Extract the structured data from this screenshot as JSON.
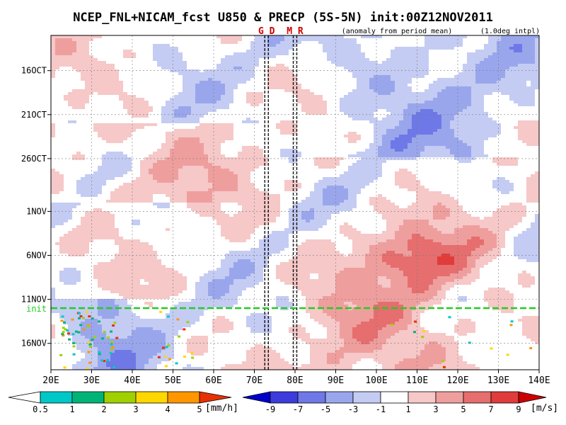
{
  "chart_data": {
    "type": "heatmap",
    "title": "NCEP_FNL+NICAM_fcst U850 & PRECP (5S-5N) init:00Z12NOV2011",
    "subtitle_left": "(anomaly from period mean)",
    "subtitle_right": "(1.0deg intpl)",
    "markers": [
      {
        "label": "G D",
        "lon": 73.0,
        "color": "#d00000"
      },
      {
        "label": "M R",
        "lon": 80.0,
        "color": "#d00000"
      }
    ],
    "init_label": "init",
    "init_color": "#22cc22",
    "x_ticks": [
      "20E",
      "30E",
      "40E",
      "50E",
      "60E",
      "70E",
      "80E",
      "90E",
      "100E",
      "110E",
      "120E",
      "130E",
      "140E"
    ],
    "x_values": [
      20,
      30,
      40,
      50,
      60,
      70,
      80,
      90,
      100,
      110,
      120,
      130,
      140
    ],
    "xlim": [
      20,
      140
    ],
    "y_ticks": [
      "16OCT",
      "21OCT",
      "26OCT",
      "1NOV",
      "6NOV",
      "11NOV",
      "16NOV"
    ],
    "y_values": [
      4,
      9,
      14,
      20,
      25,
      30,
      35
    ],
    "ylim_days_from_oct12": [
      0,
      38
    ],
    "init_day": 31,
    "precip_colorbar": {
      "levels": [
        "0.5",
        "1",
        "2",
        "3",
        "4",
        "5"
      ],
      "units": "[mm/h]",
      "colors": [
        "#ffffff",
        "#00c8c8",
        "#00b478",
        "#a0d000",
        "#ffd700",
        "#ff9600",
        "#e63200"
      ]
    },
    "u850_colorbar": {
      "levels": [
        "-9",
        "-7",
        "-5",
        "-3",
        "-1",
        "1",
        "3",
        "5",
        "7",
        "9"
      ],
      "units": "[m/s]",
      "colors": [
        "#0000c8",
        "#3c3cdc",
        "#6e78e6",
        "#9aa6ec",
        "#c4ccf4",
        "#ffffff",
        "#f6c8c8",
        "#ef9e9e",
        "#e66e6e",
        "#e03c3c",
        "#cc0000"
      ]
    },
    "notable_features": [
      {
        "description": "strong westerly anomaly maximum",
        "lon_range": [
          100,
          115
        ],
        "date": "6NOV",
        "value": 9
      },
      {
        "description": "easterly anomaly region",
        "lon_range": [
          20,
          40
        ],
        "date": "16NOV",
        "value": -7
      }
    ]
  }
}
